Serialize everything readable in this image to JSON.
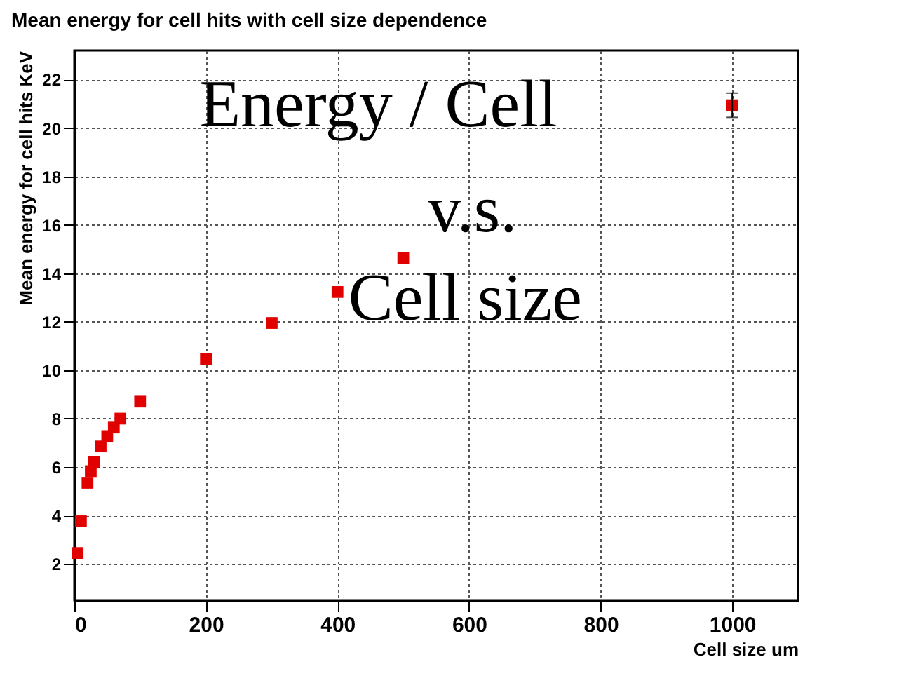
{
  "chart_data": {
    "type": "scatter",
    "title": "Mean energy for cell hits with cell size dependence",
    "xlabel": "Cell size  um",
    "ylabel": "Mean energy for cell hits  KeV",
    "x": [
      5,
      10,
      20,
      25,
      30,
      40,
      50,
      60,
      70,
      100,
      200,
      300,
      400,
      500,
      1000
    ],
    "series": [
      {
        "color": "#e00000",
        "values": [
          2.45,
          3.76,
          5.35,
          5.83,
          6.2,
          6.85,
          7.28,
          7.63,
          8.0,
          8.7,
          10.46,
          11.95,
          13.23,
          14.62,
          20.94
        ],
        "errors": [
          null,
          null,
          null,
          null,
          null,
          null,
          null,
          null,
          null,
          null,
          null,
          null,
          null,
          null,
          0.5
        ]
      }
    ],
    "xlim": [
      0,
      1100
    ],
    "xticks": [
      0,
      200,
      400,
      600,
      800,
      1000
    ],
    "ylim": [
      0.5,
      23.2
    ],
    "yticks": [
      2,
      4,
      6,
      8,
      10,
      12,
      14,
      16,
      18,
      20,
      22
    ],
    "grid": true,
    "marker": "square",
    "annotations": [
      "Energy / Cell",
      "v.s.",
      "Cell size"
    ]
  }
}
